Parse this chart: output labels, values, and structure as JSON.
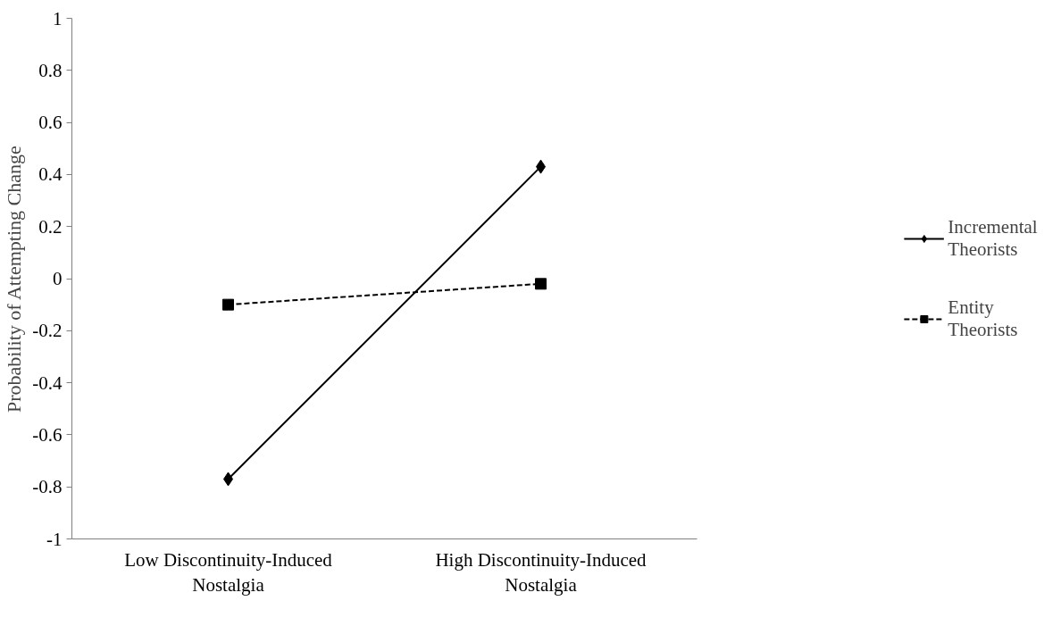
{
  "chart_data": {
    "type": "line",
    "ylabel": "Probability of Attempting Change",
    "categories": [
      "Low Discontinuity-Induced Nostalgia",
      "High Discontinuity-Induced Nostalgia"
    ],
    "ylim": [
      -1,
      1
    ],
    "yticks": [
      -1,
      -0.8,
      -0.6,
      -0.4,
      -0.2,
      0,
      0.2,
      0.4,
      0.6,
      0.8,
      1
    ],
    "grid": false,
    "legend": "right",
    "series": [
      {
        "name": "Incremental Theorists",
        "color": "#000000",
        "values": [
          -0.77,
          0.43
        ],
        "marker": "diamond",
        "line_style": "solid"
      },
      {
        "name": "Entity Theorists",
        "color": "#000000",
        "values": [
          -0.1,
          -0.02
        ],
        "marker": "square",
        "line_style": "dashed"
      }
    ]
  }
}
